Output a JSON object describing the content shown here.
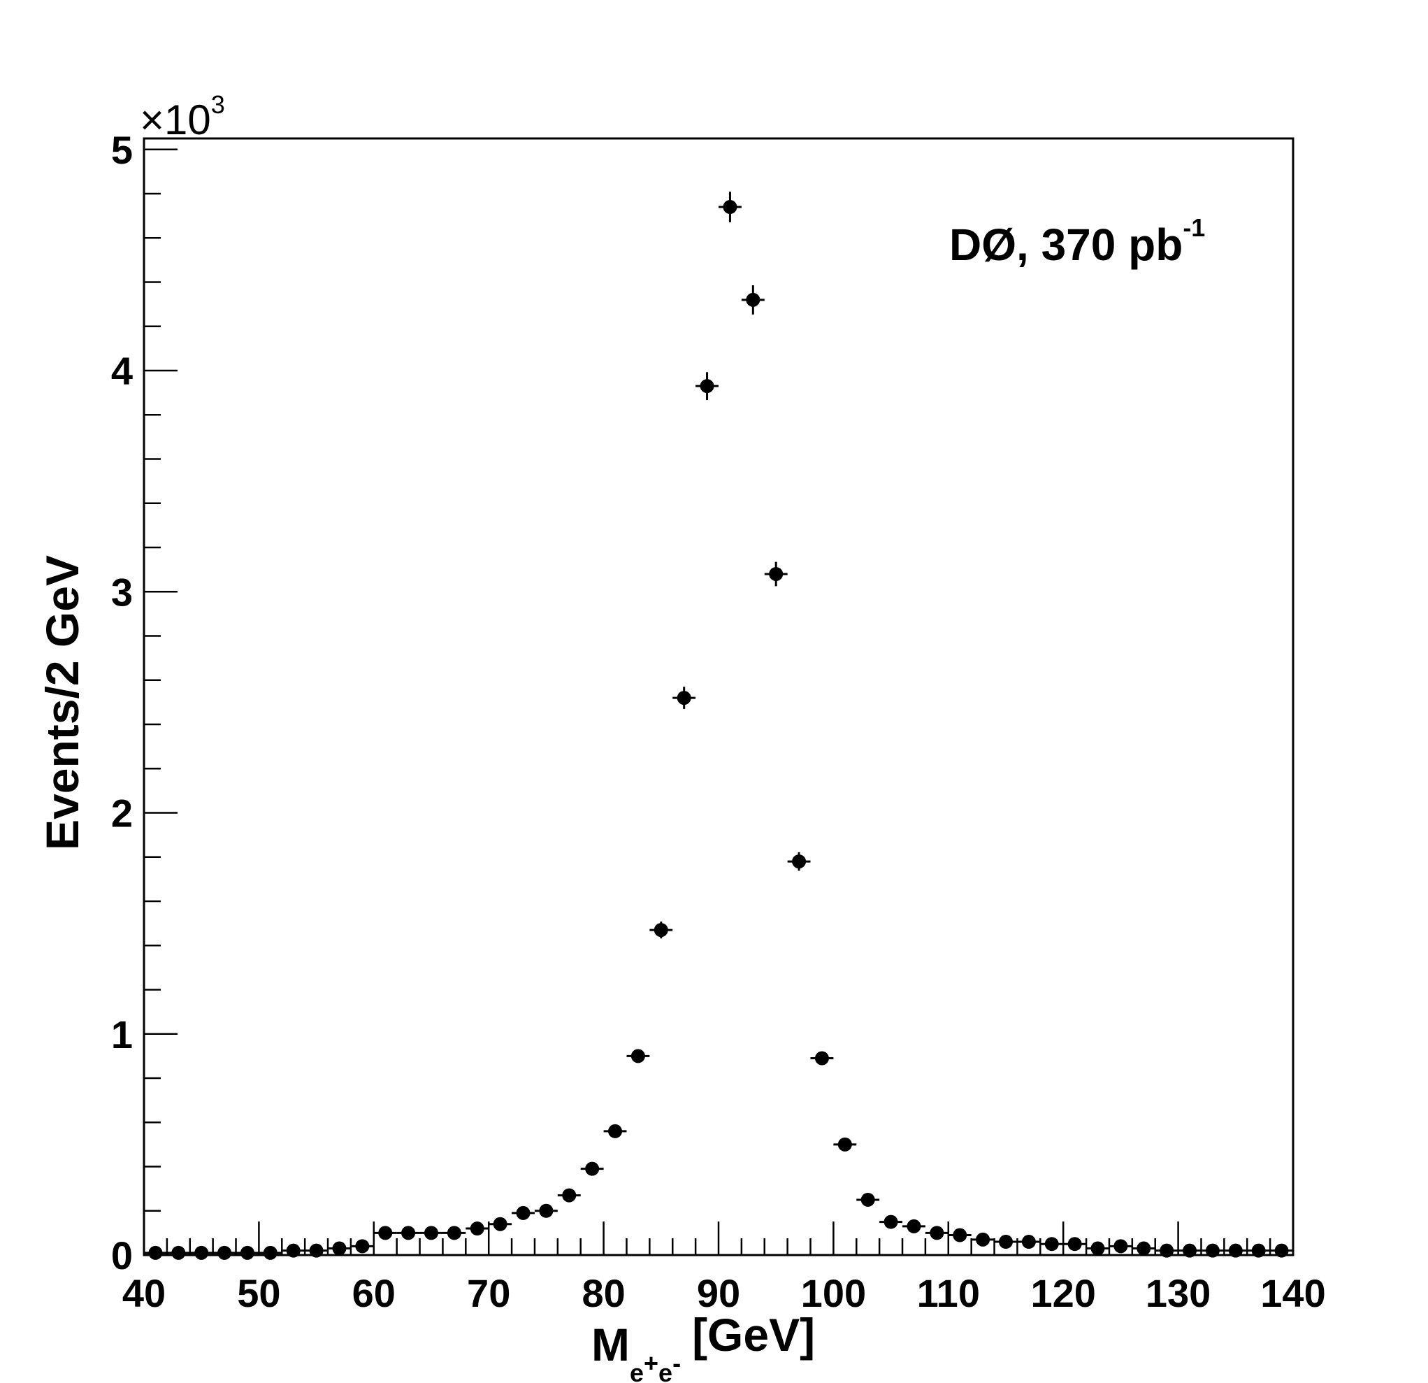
{
  "chart_data": {
    "type": "scatter",
    "xlabel_main": "M",
    "xlabel_subscript": [
      "e",
      "+",
      "e",
      "-"
    ],
    "xlabel_unit": "[GeV]",
    "ylabel": "Events/2 GeV",
    "y_multiplier_base": "×10",
    "y_multiplier_exponent": "3",
    "annotation_main": "DØ, 370 pb",
    "annotation_exponent": "-1",
    "xlim": [
      40,
      140
    ],
    "ylim": [
      0,
      5.05
    ],
    "x_ticks": [
      "40",
      "50",
      "60",
      "70",
      "80",
      "90",
      "100",
      "110",
      "120",
      "130",
      "140"
    ],
    "y_ticks": [
      "0",
      "1",
      "2",
      "3",
      "4",
      "5"
    ],
    "x": [
      41,
      43,
      45,
      47,
      49,
      51,
      53,
      55,
      57,
      59,
      61,
      63,
      65,
      67,
      69,
      71,
      73,
      75,
      77,
      79,
      81,
      83,
      85,
      87,
      89,
      91,
      93,
      95,
      97,
      99,
      101,
      103,
      105,
      107,
      109,
      111,
      113,
      115,
      117,
      119,
      121,
      123,
      125,
      127,
      129,
      131,
      133,
      135,
      137,
      139
    ],
    "y": [
      0.01,
      0.01,
      0.01,
      0.01,
      0.01,
      0.01,
      0.02,
      0.02,
      0.03,
      0.04,
      0.1,
      0.1,
      0.1,
      0.1,
      0.12,
      0.14,
      0.19,
      0.2,
      0.27,
      0.39,
      0.56,
      0.9,
      1.47,
      2.52,
      3.93,
      4.74,
      4.32,
      3.08,
      1.78,
      0.89,
      0.5,
      0.25,
      0.15,
      0.13,
      0.1,
      0.09,
      0.07,
      0.06,
      0.06,
      0.05,
      0.05,
      0.03,
      0.04,
      0.03,
      0.02,
      0.02,
      0.02,
      0.02,
      0.02,
      0.02
    ],
    "y_err": [
      0.003,
      0.003,
      0.003,
      0.003,
      0.003,
      0.003,
      0.005,
      0.005,
      0.006,
      0.006,
      0.01,
      0.01,
      0.01,
      0.01,
      0.011,
      0.012,
      0.014,
      0.014,
      0.016,
      0.02,
      0.024,
      0.03,
      0.038,
      0.05,
      0.063,
      0.069,
      0.066,
      0.055,
      0.042,
      0.03,
      0.022,
      0.016,
      0.012,
      0.011,
      0.01,
      0.01,
      0.008,
      0.008,
      0.008,
      0.007,
      0.007,
      0.006,
      0.006,
      0.006,
      0.005,
      0.005,
      0.005,
      0.005,
      0.005,
      0.005
    ],
    "x_err": 1,
    "marker_color": "#000000",
    "grid": false,
    "legend": "none"
  }
}
